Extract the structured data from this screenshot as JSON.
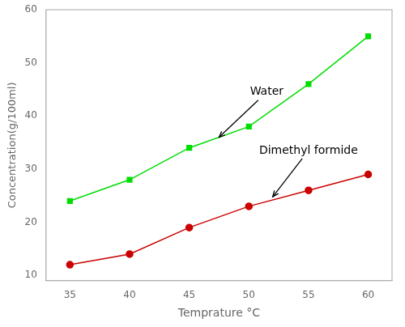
{
  "chart_data": {
    "type": "line",
    "x": [
      35,
      40,
      45,
      50,
      55,
      60
    ],
    "series": [
      {
        "color": "#00dd00",
        "marker": "square",
        "line_style": "solid",
        "values": [
          24,
          28,
          34,
          38,
          46,
          55
        ]
      },
      {
        "color": "#cc0000",
        "marker": "circle",
        "line_style": "solid",
        "values": [
          12,
          14,
          19,
          23,
          26,
          29
        ]
      }
    ],
    "xlabel": "Temprature °C",
    "ylabel": "Concentration(g/100ml)",
    "xlim": [
      33,
      62
    ],
    "ylim": [
      9,
      60
    ],
    "xticks": [
      35,
      40,
      45,
      50,
      55,
      60
    ],
    "yticks": [
      10,
      20,
      30,
      40,
      50,
      60
    ],
    "grid": false,
    "annotations": [
      {
        "text": "Water",
        "xy": [
          47.5,
          36.0
        ],
        "xytext": [
          51.5,
          44.5
        ]
      },
      {
        "text": "Dimethyl formide",
        "xy": [
          52.0,
          24.8
        ],
        "xytext": [
          55.0,
          33.5
        ]
      }
    ]
  }
}
